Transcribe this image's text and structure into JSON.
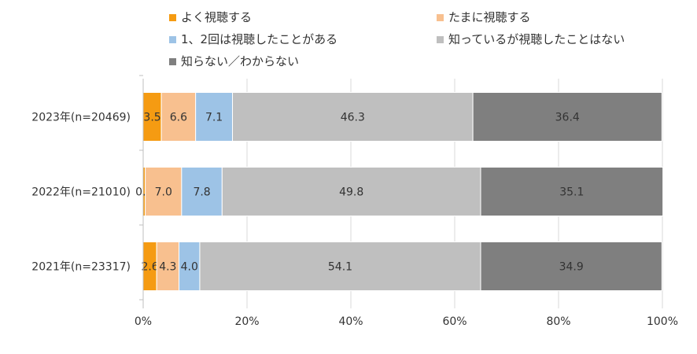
{
  "chart_data": {
    "type": "bar",
    "orientation": "horizontal",
    "stacked": "percent",
    "categories": [
      "2023年(n=20469)",
      "2022年(n=21010)",
      "2021年(n=23317)"
    ],
    "series": [
      {
        "name": "よく視聴する",
        "color": "#F59B12",
        "values": [
          3.5,
          0.4,
          2.6
        ]
      },
      {
        "name": "たまに視聴する",
        "color": "#F8C08F",
        "values": [
          6.6,
          7.0,
          4.3
        ]
      },
      {
        "name": "1、2回は視聴したことがある",
        "color": "#9DC3E6",
        "values": [
          7.1,
          7.8,
          4.0
        ]
      },
      {
        "name": "知っているが視聴したことはない",
        "color": "#BFBFBF",
        "values": [
          46.3,
          49.8,
          54.1
        ]
      },
      {
        "name": "知らない／わからない",
        "color": "#7F7F7F",
        "values": [
          36.4,
          35.1,
          34.9
        ]
      }
    ],
    "xaxis": {
      "ticks": [
        "0%",
        "20%",
        "40%",
        "60%",
        "80%",
        "100%"
      ],
      "range": [
        0,
        100
      ]
    },
    "grid": true,
    "legend_position": "top"
  }
}
